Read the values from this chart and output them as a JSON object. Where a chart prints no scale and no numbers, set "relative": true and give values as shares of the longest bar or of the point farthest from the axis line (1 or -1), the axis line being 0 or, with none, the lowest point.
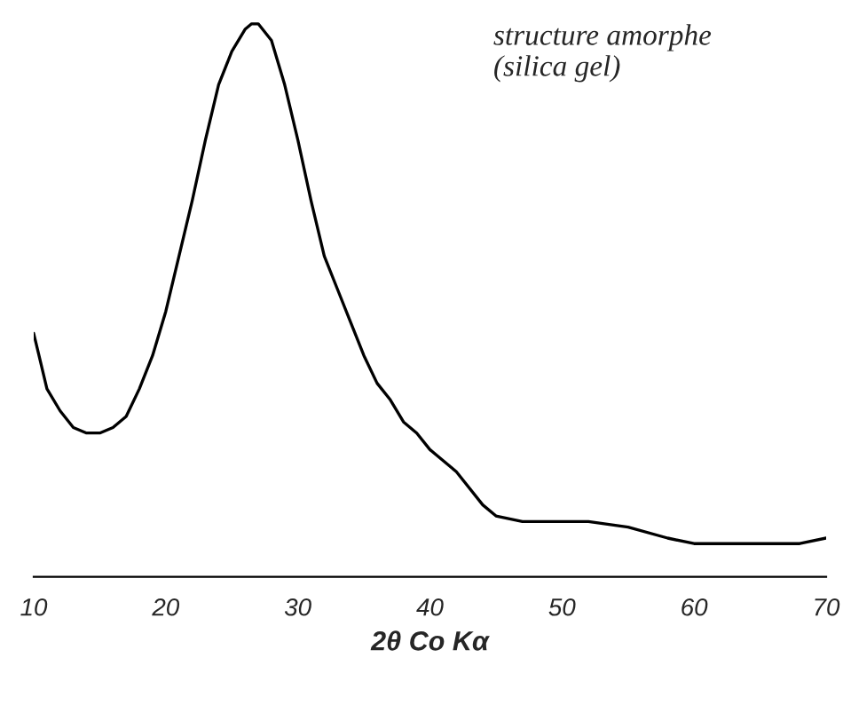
{
  "chart_data": {
    "type": "line",
    "relative": true,
    "xlabel": "2θ Co Kα",
    "annotations": [
      "structure amorphe\n(silica gel)"
    ],
    "x": [
      10,
      10.5,
      11,
      12,
      13,
      14,
      15,
      16,
      17,
      18,
      19,
      20,
      21,
      22,
      23,
      24,
      25,
      26,
      26.5,
      27,
      28,
      29,
      30,
      31,
      32,
      33,
      34,
      35,
      36,
      37,
      38,
      39,
      40,
      42,
      44,
      45,
      47,
      50,
      52,
      55,
      58,
      60,
      63,
      66,
      68,
      70
    ],
    "series": [
      {
        "color": "#000000",
        "values": [
          0.44,
          0.39,
          0.34,
          0.3,
          0.27,
          0.26,
          0.26,
          0.27,
          0.29,
          0.34,
          0.4,
          0.48,
          0.58,
          0.68,
          0.79,
          0.89,
          0.95,
          0.99,
          1.0,
          1.0,
          0.97,
          0.89,
          0.79,
          0.68,
          0.58,
          0.52,
          0.46,
          0.4,
          0.35,
          0.32,
          0.28,
          0.26,
          0.23,
          0.19,
          0.13,
          0.11,
          0.1,
          0.1,
          0.1,
          0.09,
          0.07,
          0.06,
          0.06,
          0.06,
          0.06,
          0.07
        ]
      }
    ],
    "xlim": [
      10,
      70
    ],
    "xticks": [
      10,
      20,
      30,
      40,
      50,
      60,
      70
    ],
    "grid": false,
    "legend": false,
    "marker": "none",
    "line_style": "solid"
  }
}
